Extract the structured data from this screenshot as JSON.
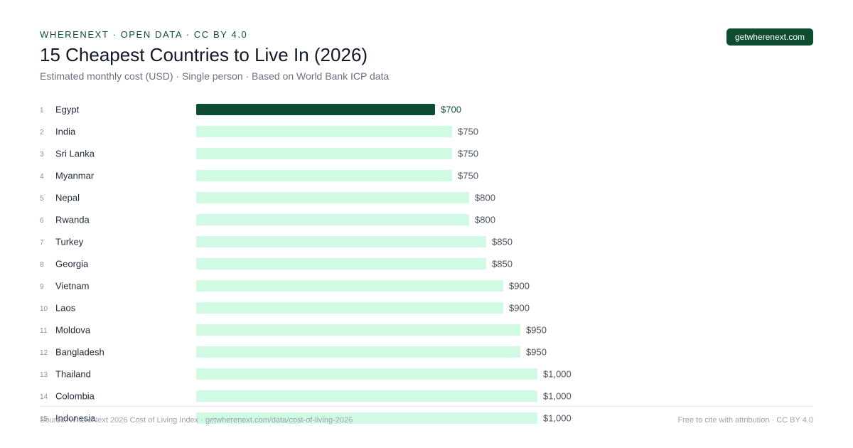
{
  "header": {
    "eyebrow": "WHERENEXT · OPEN DATA · CC BY 4.0",
    "badge": "getwherenext.com",
    "title": "15 Cheapest Countries to Live In (2026)",
    "subtitle": "Estimated monthly cost (USD) · Single person · Based on World Bank ICP data"
  },
  "footer": {
    "source": "Source: WhereNext 2026 Cost of Living Index · getwherenext.com/data/cost-of-living-2026",
    "license": "Free to cite with attribution · CC BY 4.0"
  },
  "colors": {
    "highlight_bar": "#0f4d33",
    "bar": "#d1fae5",
    "highlight_text": "#0f5132"
  },
  "chart_data": {
    "type": "bar",
    "orientation": "horizontal",
    "title": "15 Cheapest Countries to Live In (2026)",
    "ranks": [
      1,
      2,
      3,
      4,
      5,
      6,
      7,
      8,
      9,
      10,
      11,
      12,
      13,
      14,
      15
    ],
    "categories": [
      "Egypt",
      "India",
      "Sri Lanka",
      "Myanmar",
      "Nepal",
      "Rwanda",
      "Turkey",
      "Georgia",
      "Vietnam",
      "Laos",
      "Moldova",
      "Bangladesh",
      "Thailand",
      "Colombia",
      "Indonesia"
    ],
    "values": [
      700,
      750,
      750,
      750,
      800,
      800,
      850,
      850,
      900,
      900,
      950,
      950,
      1000,
      1000,
      1000
    ],
    "value_labels": [
      "$700",
      "$750",
      "$750",
      "$750",
      "$800",
      "$800",
      "$850",
      "$850",
      "$900",
      "$900",
      "$950",
      "$950",
      "$1,000",
      "$1,000",
      "$1,000"
    ],
    "highlight_index": 0,
    "xlim": [
      0,
      1000
    ],
    "grid": false,
    "legend": "none"
  }
}
